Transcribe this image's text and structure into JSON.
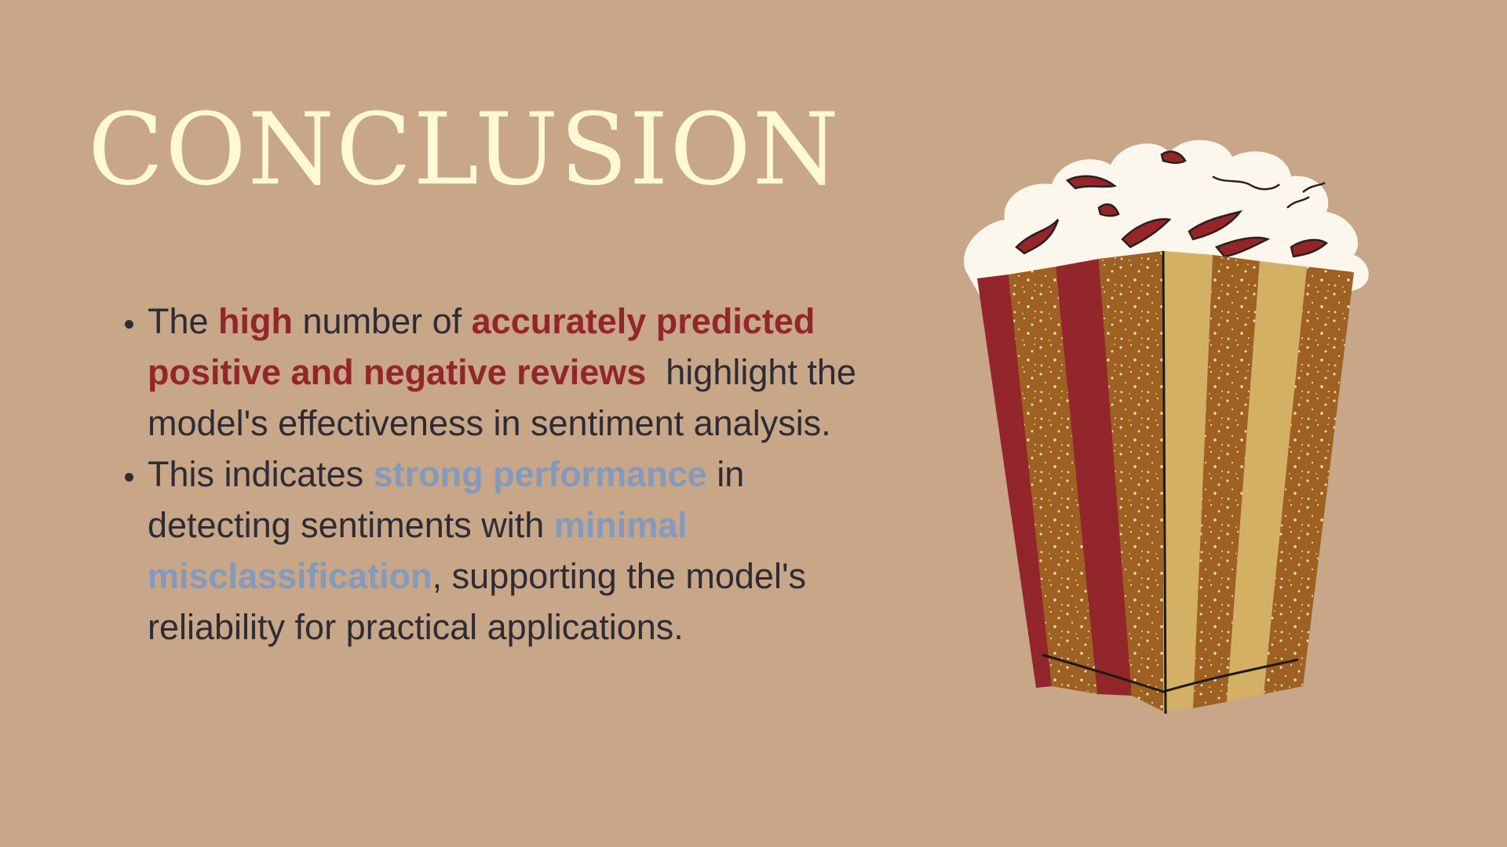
{
  "slide": {
    "title": "CONCLUSION",
    "bullets": [
      {
        "t1": "The ",
        "e1": "high",
        "t2": " number of ",
        "e2": "accurately predicted positive and negative reviews",
        "t3": "  highlight the model's effectiveness in sentiment analysis."
      },
      {
        "t1": "This indicates ",
        "e1": "strong performance",
        "t2": " in detecting sentiments with ",
        "e2": "minimal misclassification",
        "t3": ", supporting the model's reliability for practical applications."
      }
    ]
  },
  "colors": {
    "background": "#c8a688",
    "title": "#fef9d4",
    "body_text": "#2d2c35",
    "emphasis_red": "#93262a",
    "emphasis_blue": "#8399bd"
  },
  "illustration": {
    "icon": "popcorn-bucket-icon"
  }
}
